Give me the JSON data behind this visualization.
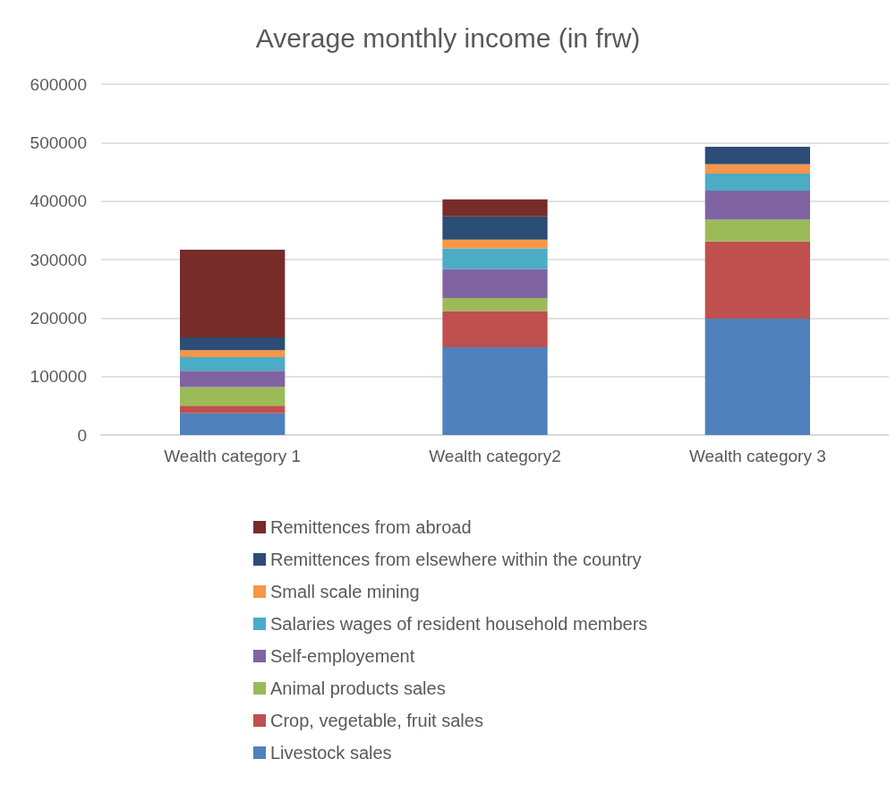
{
  "chart_data": {
    "type": "bar",
    "title": "Average monthly income (in frw)",
    "stacked": true,
    "categories": [
      "Wealth category 1",
      "Wealth category2",
      "Wealth category 3"
    ],
    "series": [
      {
        "name": "Livestock sales",
        "color": "#4f81bd",
        "values": [
          37000,
          150000,
          199000
        ]
      },
      {
        "name": "Crop, vegetable, fruit sales",
        "color": "#c0504d",
        "values": [
          13000,
          62000,
          132000
        ]
      },
      {
        "name": "Animal products sales",
        "color": "#9bbb59",
        "values": [
          32000,
          22000,
          37000
        ]
      },
      {
        "name": "Self-employement",
        "color": "#8064a2",
        "values": [
          28000,
          50000,
          50000
        ]
      },
      {
        "name": "Salaries wages of resident household members",
        "color": "#4bacc6",
        "values": [
          23000,
          35000,
          29000
        ]
      },
      {
        "name": "Small scale mining",
        "color": "#f79646",
        "values": [
          12000,
          15000,
          16000
        ]
      },
      {
        "name": "Remittences from elsewhere within the country",
        "color": "#2c4d75",
        "values": [
          22000,
          40000,
          30000
        ]
      },
      {
        "name": "Remittences from abroad",
        "color": "#772c2a",
        "values": [
          150000,
          29000,
          0
        ]
      }
    ],
    "ylim": [
      0,
      600000
    ],
    "yticks": [
      0,
      100000,
      200000,
      300000,
      400000,
      500000,
      600000
    ],
    "grid": "y",
    "legend": "bottom"
  }
}
